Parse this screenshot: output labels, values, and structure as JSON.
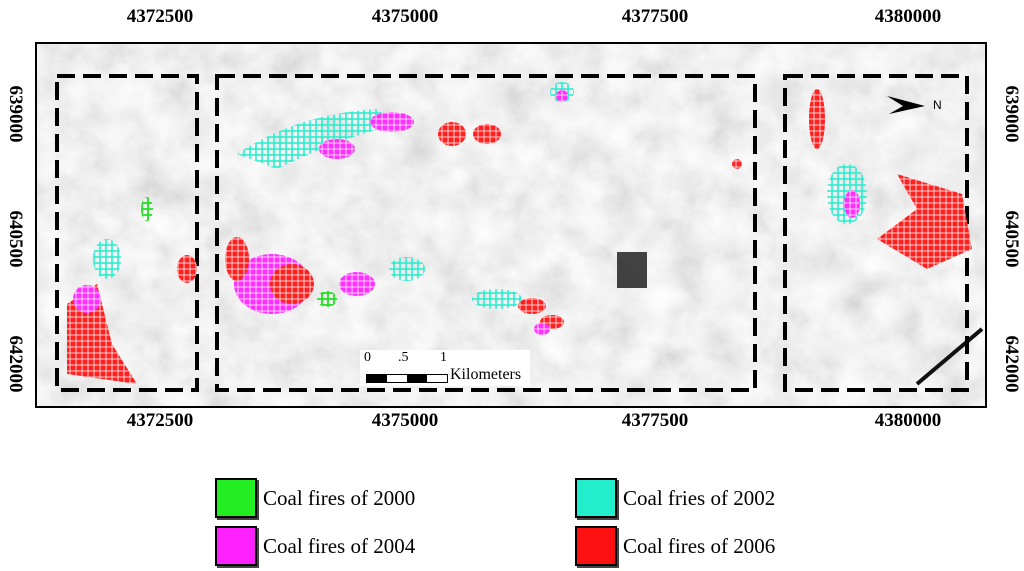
{
  "axes": {
    "x_ticks": [
      "4372500",
      "4375000",
      "4377500",
      "4380000"
    ],
    "y_ticks": [
      "639000",
      "640500",
      "642000"
    ]
  },
  "scale_bar": {
    "ticks": [
      "0",
      ".5",
      "1"
    ],
    "unit": "Kilometers"
  },
  "north_arrow": {
    "label": "N"
  },
  "legend": [
    {
      "label": "Coal fires of 2000",
      "color": "#22ee22"
    },
    {
      "label": "Coal fries of 2002",
      "color": "#22eecc"
    },
    {
      "label": "Coal fires of 2004",
      "color": "#ff22ff"
    },
    {
      "label": "Coal fires of 2006",
      "color": "#ff1111"
    }
  ]
}
